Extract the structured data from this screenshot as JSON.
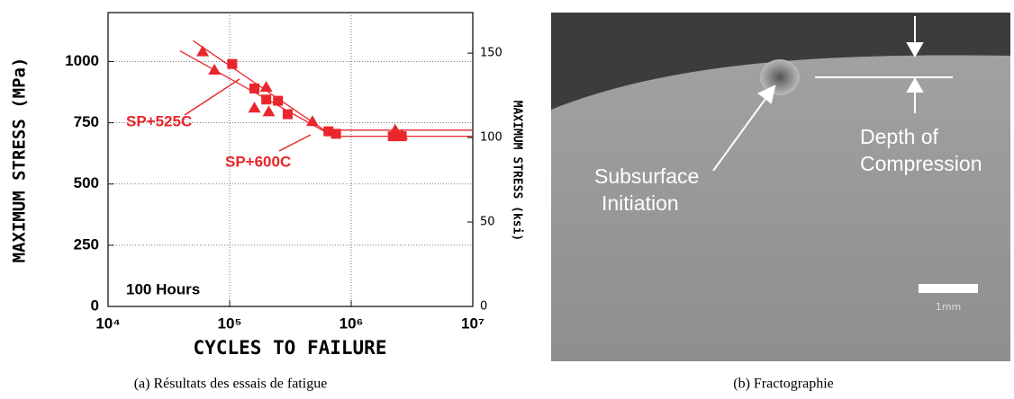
{
  "chart_data": {
    "type": "scatter",
    "xlabel": "CYCLES TO FAILURE",
    "ylabel": "MAXIMUM STRESS (MPa)",
    "y2label": "MAXIMUM STRESS (ksi)",
    "annotation": "100 Hours",
    "xscale": "log",
    "grid": true,
    "xlim": [
      10000,
      10000000
    ],
    "xticks": [
      {
        "value": 10000,
        "label": "10⁴"
      },
      {
        "value": 100000,
        "label": "10⁵"
      },
      {
        "value": 1000000,
        "label": "10⁶"
      },
      {
        "value": 10000000,
        "label": "10⁷"
      }
    ],
    "ylim": [
      0,
      1200
    ],
    "yticks": [
      0,
      250,
      500,
      750,
      1000
    ],
    "y2lim": [
      0,
      174
    ],
    "y2ticks": [
      0,
      50,
      100,
      150
    ],
    "series": [
      {
        "name": "SP+525C",
        "color": "#e8262b",
        "marker": "triangle",
        "x": [
          60000,
          75000,
          160000,
          200000,
          210000,
          480000,
          2300000,
          2600000
        ],
        "values": [
          1040,
          965,
          810,
          895,
          795,
          755,
          720,
          700
        ]
      },
      {
        "name": "SP+600C",
        "color": "#e8262b",
        "marker": "square",
        "x": [
          105000,
          160000,
          200000,
          250000,
          300000,
          650000,
          750000,
          2200000,
          2600000
        ],
        "values": [
          990,
          890,
          845,
          840,
          785,
          715,
          705,
          695,
          695
        ]
      }
    ],
    "trend_lines": [
      {
        "color": "#e8262b",
        "x": [
          50000,
          600000,
          10000000
        ],
        "values": [
          1085,
          720,
          720
        ]
      },
      {
        "color": "#e8262b",
        "x": [
          39000,
          710000,
          10000000
        ],
        "values": [
          1044,
          695,
          695
        ]
      }
    ]
  },
  "fractography": {
    "depth_label": [
      "Depth of",
      "Compression"
    ],
    "initiation_label": [
      "Subsurface",
      "Initiation"
    ],
    "scale_bar": "1mm"
  },
  "captions": [
    "(a) Résultats des essais de fatigue",
    "(b) Fractographie"
  ]
}
